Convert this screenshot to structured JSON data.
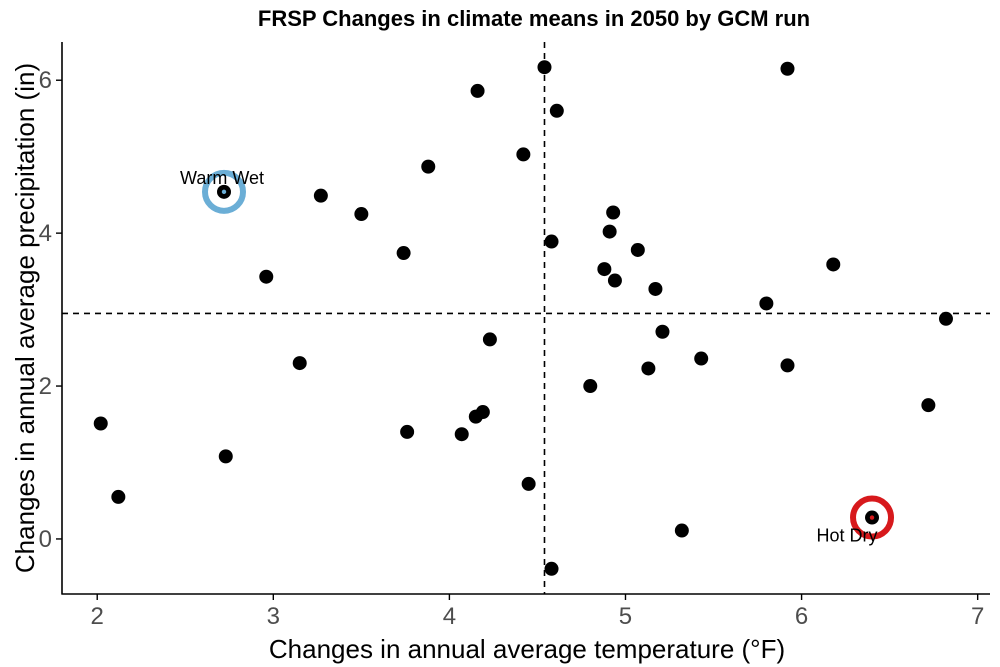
{
  "chart_data": {
    "type": "scatter",
    "title": "FRSP Changes in climate means in 2050 by GCM run",
    "xlabel": "Changes in annual average temperature (°F)",
    "ylabel": "Changes in annual average precipitation (in)",
    "xlim": [
      1.8,
      7.07
    ],
    "ylim": [
      -0.72,
      6.5
    ],
    "xticks": [
      2,
      3,
      4,
      5,
      6,
      7
    ],
    "yticks": [
      0,
      2,
      4,
      6
    ],
    "xtick_labels": [
      "2",
      "3",
      "4",
      "5",
      "6",
      "7"
    ],
    "ytick_labels": [
      "0",
      "2",
      "4",
      "6"
    ],
    "grid": false,
    "reference_lines": {
      "x": 4.54,
      "y": 2.95
    },
    "points": [
      {
        "x": 2.02,
        "y": 1.51
      },
      {
        "x": 2.12,
        "y": 0.55
      },
      {
        "x": 2.73,
        "y": 1.08
      },
      {
        "x": 2.72,
        "y": 4.54
      },
      {
        "x": 2.96,
        "y": 3.43
      },
      {
        "x": 3.15,
        "y": 2.3
      },
      {
        "x": 3.27,
        "y": 4.49
      },
      {
        "x": 3.5,
        "y": 4.25
      },
      {
        "x": 3.74,
        "y": 3.74
      },
      {
        "x": 3.76,
        "y": 1.4
      },
      {
        "x": 3.88,
        "y": 4.87
      },
      {
        "x": 4.07,
        "y": 1.37
      },
      {
        "x": 4.15,
        "y": 1.6
      },
      {
        "x": 4.16,
        "y": 5.86
      },
      {
        "x": 4.19,
        "y": 1.66
      },
      {
        "x": 4.23,
        "y": 2.61
      },
      {
        "x": 4.42,
        "y": 5.03
      },
      {
        "x": 4.45,
        "y": 0.72
      },
      {
        "x": 4.54,
        "y": 6.17
      },
      {
        "x": 4.58,
        "y": 3.89
      },
      {
        "x": 4.58,
        "y": -0.39
      },
      {
        "x": 4.61,
        "y": 5.6
      },
      {
        "x": 4.8,
        "y": 2.0
      },
      {
        "x": 4.88,
        "y": 3.53
      },
      {
        "x": 4.91,
        "y": 4.02
      },
      {
        "x": 4.93,
        "y": 4.27
      },
      {
        "x": 4.94,
        "y": 3.38
      },
      {
        "x": 5.07,
        "y": 3.78
      },
      {
        "x": 5.13,
        "y": 2.23
      },
      {
        "x": 5.17,
        "y": 3.27
      },
      {
        "x": 5.21,
        "y": 2.71
      },
      {
        "x": 5.32,
        "y": 0.11
      },
      {
        "x": 5.43,
        "y": 2.36
      },
      {
        "x": 5.8,
        "y": 3.08
      },
      {
        "x": 5.92,
        "y": 6.15
      },
      {
        "x": 5.92,
        "y": 2.27
      },
      {
        "x": 6.18,
        "y": 3.59
      },
      {
        "x": 6.4,
        "y": 0.28
      },
      {
        "x": 6.72,
        "y": 1.75
      },
      {
        "x": 6.82,
        "y": 2.88
      }
    ],
    "highlights": [
      {
        "label": "Warm Wet",
        "x": 2.72,
        "y": 4.54,
        "color": "#6baed6"
      },
      {
        "label": "Hot Dry",
        "x": 6.4,
        "y": 0.28,
        "color": "#d7191c"
      }
    ]
  },
  "colors": {
    "point": "#000000",
    "axis": "#000000",
    "reference_line": "#000000"
  }
}
